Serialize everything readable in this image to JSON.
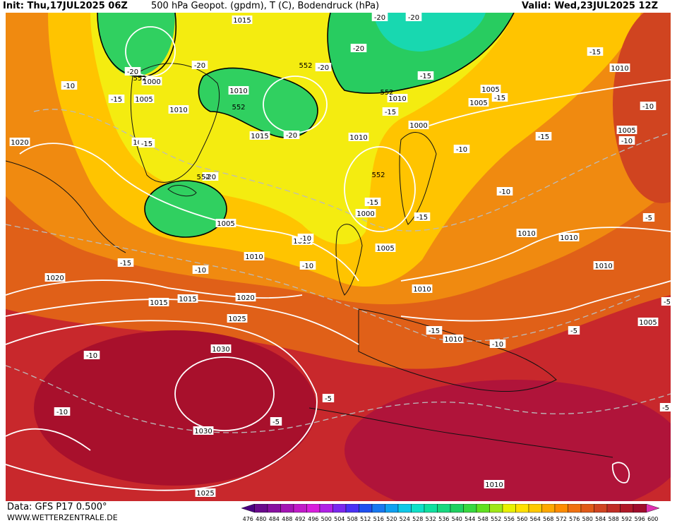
{
  "header": {
    "init": "Init: Thu,17JUL2025 06Z",
    "title": "500 hPa Geopot. (gpdm), T (C), Bodendruck (hPa)",
    "valid": "Valid: Wed,23JUL2025 12Z"
  },
  "footer": {
    "data_source": "Data: GFS P17 0.500°",
    "website": "WWW.WETTERZENTRALE.DE"
  },
  "legend": {
    "unit": "gpdm",
    "values": [
      "476",
      "480",
      "484",
      "488",
      "492",
      "496",
      "500",
      "504",
      "508",
      "512",
      "516",
      "520",
      "524",
      "528",
      "532",
      "536",
      "540",
      "544",
      "548",
      "552",
      "556",
      "560",
      "564",
      "568",
      "572",
      "576",
      "580",
      "584",
      "588",
      "592",
      "596",
      "600"
    ],
    "colors": [
      "#4b0082",
      "#6a0a8c",
      "#880fa0",
      "#a414b4",
      "#c01ac8",
      "#d81edc",
      "#b020e6",
      "#7a28ee",
      "#4a30f4",
      "#2050f0",
      "#1878f0",
      "#10a0f0",
      "#10c8e8",
      "#10e0c8",
      "#10e0a0",
      "#18d880",
      "#20d060",
      "#38d840",
      "#60e020",
      "#a0e818",
      "#e8f000",
      "#ffe000",
      "#ffc800",
      "#ffa800",
      "#ff8c00",
      "#f07010",
      "#e05a18",
      "#d04420",
      "#c02c24",
      "#b01828",
      "#a00c2c",
      "#e030b0"
    ]
  },
  "map": {
    "isobar_labels": [
      {
        "text": "1015"
      },
      {
        "text": "1000"
      },
      {
        "text": "1005"
      },
      {
        "text": "1010"
      },
      {
        "text": "1010"
      },
      {
        "text": "1015"
      },
      {
        "text": "1015"
      },
      {
        "text": "1020"
      },
      {
        "text": "1020"
      },
      {
        "text": "1015"
      },
      {
        "text": "1005"
      },
      {
        "text": "1015"
      },
      {
        "text": "1010"
      },
      {
        "text": "1020"
      },
      {
        "text": "1015"
      },
      {
        "text": "1025"
      },
      {
        "text": "1030"
      },
      {
        "text": "1030"
      },
      {
        "text": "1025"
      },
      {
        "text": "1010"
      },
      {
        "text": "1000"
      },
      {
        "text": "1010"
      },
      {
        "text": "1005"
      },
      {
        "text": "1010"
      },
      {
        "text": "1000"
      },
      {
        "text": "1005"
      },
      {
        "text": "1010"
      },
      {
        "text": "1010"
      },
      {
        "text": "1005"
      },
      {
        "text": "1005"
      },
      {
        "text": "1010"
      },
      {
        "text": "1010"
      },
      {
        "text": "1005"
      },
      {
        "text": "1010"
      },
      {
        "text": "1010"
      }
    ],
    "temp_labels": [
      {
        "text": "-20"
      },
      {
        "text": "-20"
      },
      {
        "text": "-20"
      },
      {
        "text": "-10"
      },
      {
        "text": "-15"
      },
      {
        "text": "-15"
      },
      {
        "text": "-20"
      },
      {
        "text": "-20"
      },
      {
        "text": "-15"
      },
      {
        "text": "-15"
      },
      {
        "text": "-15"
      },
      {
        "text": "-10"
      },
      {
        "text": "-10"
      },
      {
        "text": "-15"
      },
      {
        "text": "-20"
      },
      {
        "text": "-20"
      },
      {
        "text": "-15"
      },
      {
        "text": "-15"
      },
      {
        "text": "-10"
      },
      {
        "text": "-10"
      },
      {
        "text": "-10"
      },
      {
        "text": "-15"
      },
      {
        "text": "-10"
      },
      {
        "text": "-10"
      },
      {
        "text": "-15"
      },
      {
        "text": "-10"
      },
      {
        "text": "-5"
      },
      {
        "text": "-5"
      },
      {
        "text": "-5"
      },
      {
        "text": "-5"
      },
      {
        "text": "-10"
      },
      {
        "text": "-10"
      },
      {
        "text": "-5"
      },
      {
        "text": "-5"
      },
      {
        "text": "-15"
      },
      {
        "text": "-20"
      }
    ],
    "geopot_labels": [
      {
        "text": "552"
      },
      {
        "text": "552"
      },
      {
        "text": "552"
      },
      {
        "text": "552"
      },
      {
        "text": "552"
      },
      {
        "text": "552"
      }
    ]
  }
}
